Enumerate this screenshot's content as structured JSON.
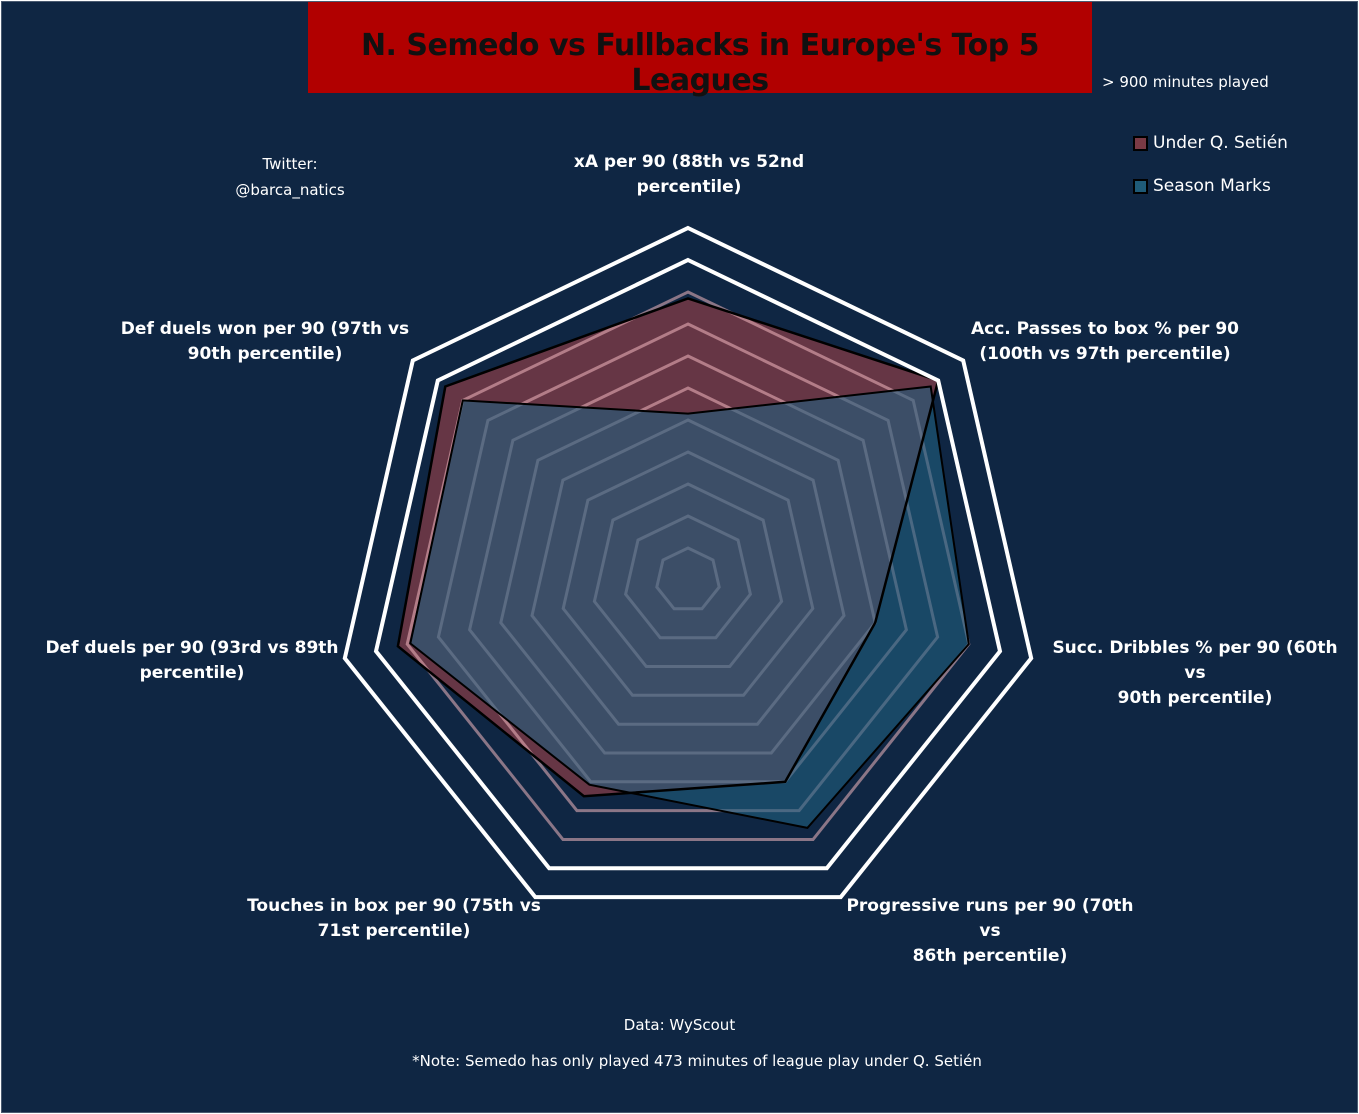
{
  "title": "N. Semedo vs Fullbacks in Europe's Top 5 Leagues",
  "subtitle": "> 900 minutes played",
  "credit": {
    "line1": "Twitter:",
    "line2": "@barca_natics"
  },
  "source": "Data: WyScout",
  "footnote": "*Note: Semedo has only played 473 minutes of league play under Q. Setién",
  "legend": [
    {
      "label": "Under Q. Setién",
      "color": "#7a3a45"
    },
    {
      "label": "Season Marks",
      "color": "#1f5b78"
    }
  ],
  "colors": {
    "background": "#0f2643",
    "title_box": "#b10000",
    "under_fill": "#7a3a45",
    "season_fill": "#1f5f7f"
  },
  "chart_data": {
    "type": "radar",
    "title": "N. Semedo vs Fullbacks in Europe's Top 5 Leagues",
    "axes": [
      {
        "line1": "xA per 90 (88th vs 52nd",
        "line2": "percentile)"
      },
      {
        "line1": "Acc. Passes to box % per 90",
        "line2": "(100th vs 97th percentile)"
      },
      {
        "line1": "Succ. Dribbles % per 90 (60th vs",
        "line2": "90th percentile)"
      },
      {
        "line1": "Progressive runs per 90 (70th vs",
        "line2": "86th percentile)"
      },
      {
        "line1": "Touches in box per 90 (75th vs",
        "line2": "71st percentile)"
      },
      {
        "line1": "Def duels per 90 (93rd vs 89th",
        "line2": "percentile)"
      },
      {
        "line1": "Def duels won per 90 (97th vs",
        "line2": "90th percentile)"
      }
    ],
    "categories": [
      "xA per 90",
      "Acc. Passes to box % per 90",
      "Succ. Dribbles % per 90",
      "Progressive runs per 90",
      "Touches in box per 90",
      "Def duels per 90",
      "Def duels won per 90"
    ],
    "series": [
      {
        "name": "Under Q. Setién",
        "values": [
          88,
          100,
          60,
          70,
          75,
          93,
          97
        ]
      },
      {
        "name": "Season Marks",
        "values": [
          52,
          97,
          90,
          86,
          71,
          89,
          90
        ]
      }
    ],
    "range": [
      0,
      100
    ]
  }
}
